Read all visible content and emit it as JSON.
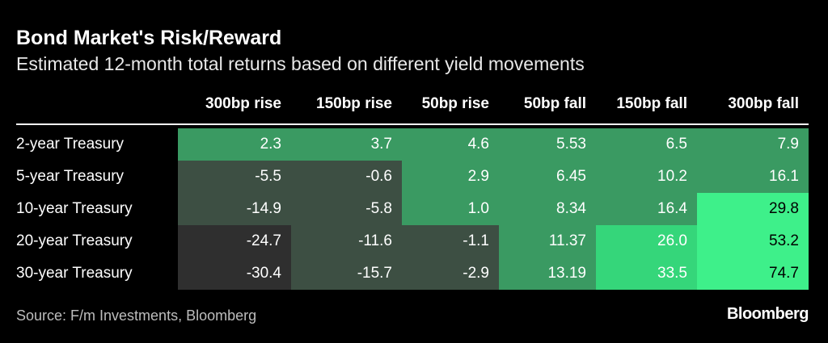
{
  "header": {
    "title": "Bond Market's Risk/Reward",
    "subtitle": "Estimated 12-month total returns based on different yield movements"
  },
  "table": {
    "columns": [
      "300bp rise",
      "150bp rise",
      "50bp rise",
      "50bp fall",
      "150bp fall",
      "300bp fall"
    ],
    "row_labels": [
      "2-year Treasury",
      "5-year Treasury",
      "10-year Treasury",
      "20-year Treasury",
      "30-year Treasury"
    ],
    "rows": [
      [
        "2.3",
        "3.7",
        "4.6",
        "5.53",
        "6.5",
        "7.9"
      ],
      [
        "-5.5",
        "-0.6",
        "2.9",
        "6.45",
        "10.2",
        "16.1"
      ],
      [
        "-14.9",
        "-5.8",
        "1.0",
        "8.34",
        "16.4",
        "29.8"
      ],
      [
        "-24.7",
        "-11.6",
        "-1.1",
        "11.37",
        "26.0",
        "53.2"
      ],
      [
        "-30.4",
        "-15.7",
        "-2.9",
        "13.19",
        "33.5",
        "74.7"
      ]
    ],
    "cell_colors": [
      [
        "#3a9a62",
        "#3a9a62",
        "#3a9a62",
        "#3a9a62",
        "#3a9a62",
        "#3a9a62"
      ],
      [
        "#3d4f43",
        "#3d4f43",
        "#3a9a62",
        "#3a9a62",
        "#3a9a62",
        "#3a9a62"
      ],
      [
        "#3d4f43",
        "#3d4f43",
        "#3a9a62",
        "#3a9a62",
        "#3a9a62",
        "#3ef08a"
      ],
      [
        "#2f2f2f",
        "#3d4f43",
        "#3d4f43",
        "#3a9a62",
        "#35d67a",
        "#3ef08a"
      ],
      [
        "#2f2f2f",
        "#3d4f43",
        "#3d4f43",
        "#3a9a62",
        "#35d67a",
        "#3ef08a"
      ]
    ]
  },
  "footer": {
    "source": "Source: F/m Investments, Bloomberg",
    "logo": "Bloomberg"
  }
}
